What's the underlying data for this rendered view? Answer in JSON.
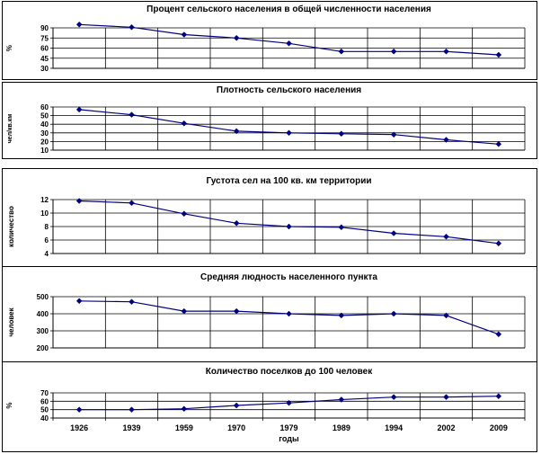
{
  "chart_data": [
    {
      "type": "line",
      "title": "Процент сельского населения в общей численности населения",
      "ylabel": "%",
      "ylim": [
        30,
        90
      ],
      "yticks": [
        30,
        45,
        60,
        75,
        90
      ],
      "x": [
        "1926",
        "1939",
        "1959",
        "1970",
        "1979",
        "1989",
        "1994",
        "2002",
        "2009"
      ],
      "series": [
        {
          "values": [
            95,
            91,
            80,
            75,
            67,
            55,
            55,
            55,
            50
          ]
        }
      ],
      "grid": true,
      "color": "#000080"
    },
    {
      "type": "line",
      "title": "Плотность сельского населения",
      "ylabel": "чел/кв.км",
      "ylim": [
        10,
        60
      ],
      "yticks": [
        10,
        20,
        30,
        40,
        50,
        60
      ],
      "x": [
        "1926",
        "1939",
        "1959",
        "1970",
        "1979",
        "1989",
        "1994",
        "2002",
        "2009"
      ],
      "series": [
        {
          "values": [
            57,
            51,
            41,
            32,
            30,
            29,
            28,
            22,
            17
          ]
        }
      ],
      "grid": true,
      "color": "#000080"
    },
    {
      "type": "line",
      "title": "Густота сел на 100 кв. км территории",
      "ylabel": "количество",
      "ylim": [
        4,
        12
      ],
      "yticks": [
        4,
        6,
        8,
        10,
        12
      ],
      "x": [
        "1926",
        "1939",
        "1959",
        "1970",
        "1979",
        "1989",
        "1994",
        "2002",
        "2009"
      ],
      "series": [
        {
          "values": [
            11.8,
            11.5,
            9.9,
            8.5,
            8,
            7.9,
            7,
            6.5,
            5.5
          ]
        }
      ],
      "grid": true,
      "color": "#000080"
    },
    {
      "type": "line",
      "title": "Средняя людность населенного пункта",
      "ylabel": "человек",
      "ylim": [
        200,
        500
      ],
      "yticks": [
        200,
        300,
        400,
        500
      ],
      "x": [
        "1926",
        "1939",
        "1959",
        "1970",
        "1979",
        "1989",
        "1994",
        "2002",
        "2009"
      ],
      "series": [
        {
          "values": [
            475,
            470,
            415,
            415,
            400,
            390,
            400,
            390,
            280
          ]
        }
      ],
      "grid": true,
      "color": "#000080"
    },
    {
      "type": "line",
      "title": "Количество  поселков до 100 человек",
      "ylabel": "%",
      "xlabel": "годы",
      "ylim": [
        40,
        70
      ],
      "yticks": [
        40,
        50,
        60,
        70
      ],
      "x": [
        "1926",
        "1939",
        "1959",
        "1970",
        "1979",
        "1989",
        "1994",
        "2002",
        "2009"
      ],
      "series": [
        {
          "values": [
            50,
            50,
            51,
            55,
            58,
            62,
            65,
            65,
            66
          ]
        }
      ],
      "grid": true,
      "color": "#000080"
    }
  ]
}
